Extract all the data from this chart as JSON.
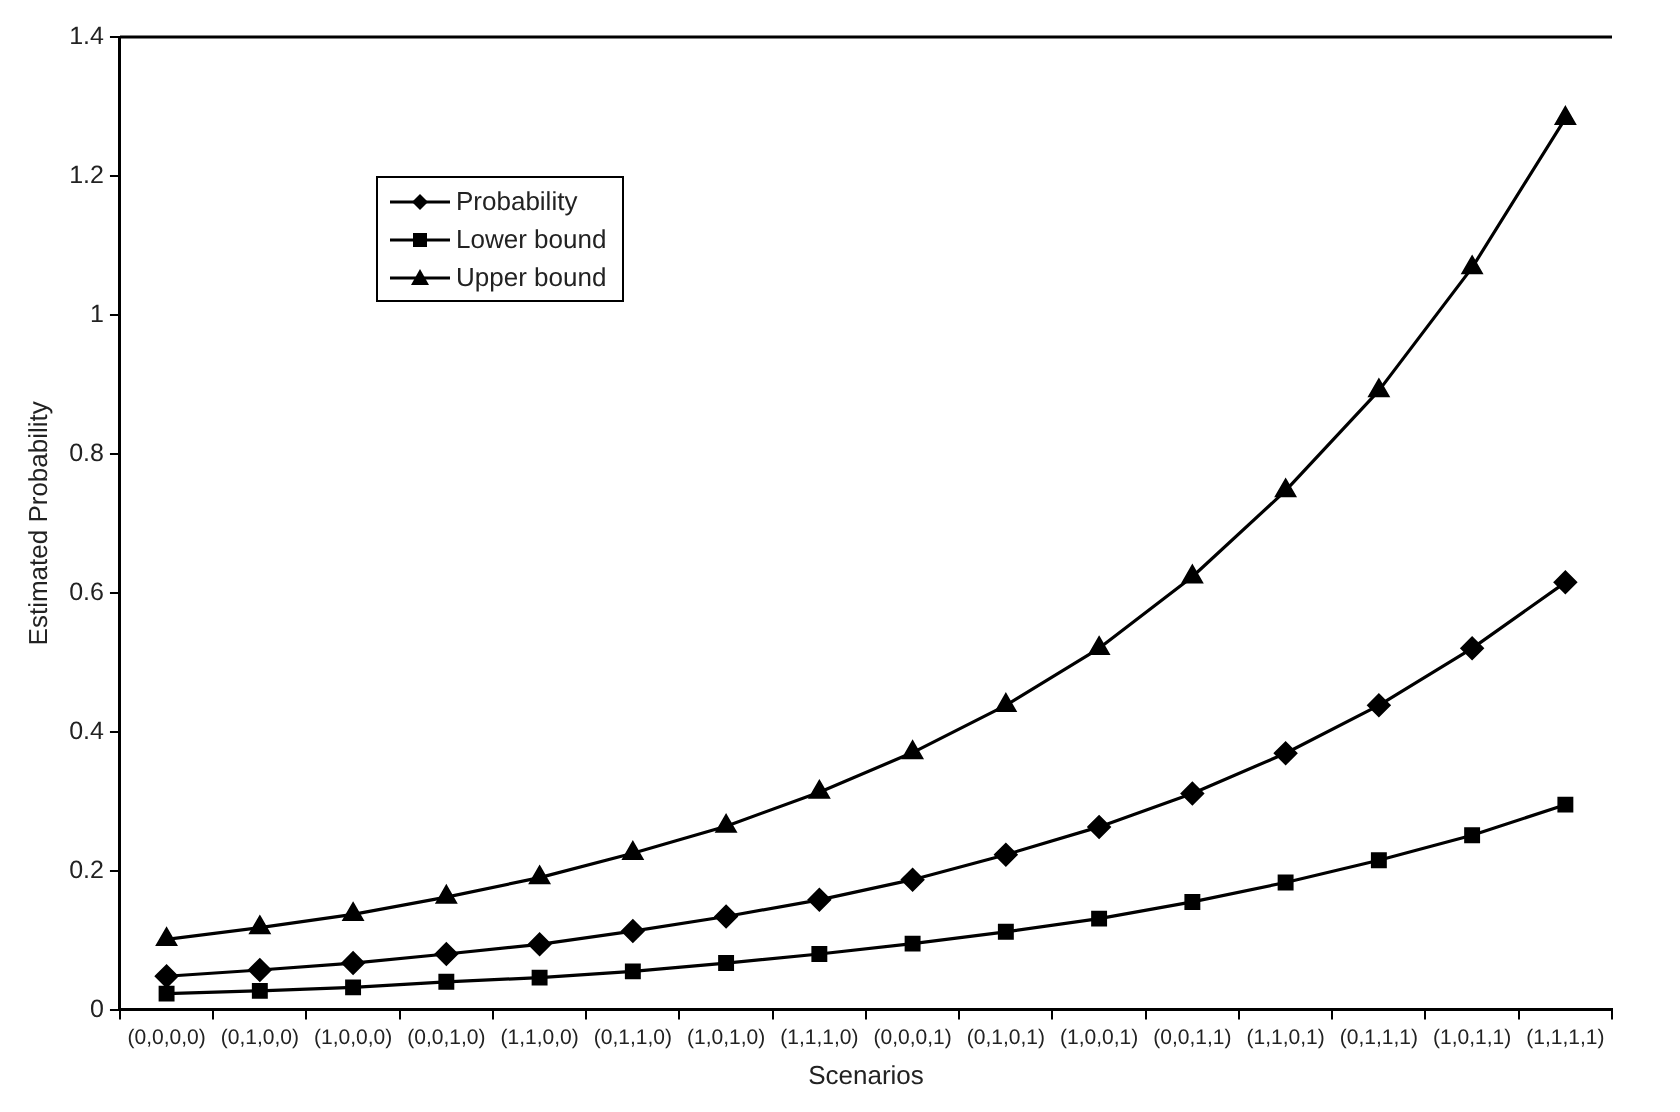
{
  "chart_data": {
    "type": "line",
    "xlabel": "Scenarios",
    "ylabel": "Estimated Probability",
    "categories": [
      "(0,0,0,0)",
      "(0,1,0,0)",
      "(1,0,0,0)",
      "(0,0,1,0)",
      "(1,1,0,0)",
      "(0,1,1,0)",
      "(1,0,1,0)",
      "(1,1,1,0)",
      "(0,0,0,1)",
      "(0,1,0,1)",
      "(1,0,0,1)",
      "(0,0,1,1)",
      "(1,1,0,1)",
      "(0,1,1,1)",
      "(1,0,1,1)",
      "(1,1,1,1)"
    ],
    "series": [
      {
        "name": "Probability",
        "color": "#000000",
        "marker": "diamond",
        "values": [
          0.048,
          0.057,
          0.067,
          0.08,
          0.094,
          0.113,
          0.134,
          0.158,
          0.187,
          0.223,
          0.263,
          0.311,
          0.369,
          0.438,
          0.52,
          0.615
        ]
      },
      {
        "name": "Lower bound",
        "color": "#000000",
        "marker": "square",
        "values": [
          0.023,
          0.027,
          0.032,
          0.04,
          0.046,
          0.055,
          0.067,
          0.08,
          0.095,
          0.112,
          0.131,
          0.155,
          0.183,
          0.215,
          0.251,
          0.295
        ]
      },
      {
        "name": "Upper bound",
        "color": "#000000",
        "marker": "triangle",
        "values": [
          0.101,
          0.118,
          0.137,
          0.162,
          0.19,
          0.225,
          0.264,
          0.313,
          0.37,
          0.438,
          0.52,
          0.623,
          0.747,
          0.891,
          1.068,
          1.283
        ]
      }
    ],
    "ylim": [
      0,
      1.4
    ],
    "yticks": [
      0,
      0.2,
      0.4,
      0.6,
      0.8,
      1,
      1.2,
      1.4
    ],
    "grid": false,
    "legend": "top left",
    "line_style": "solid"
  }
}
